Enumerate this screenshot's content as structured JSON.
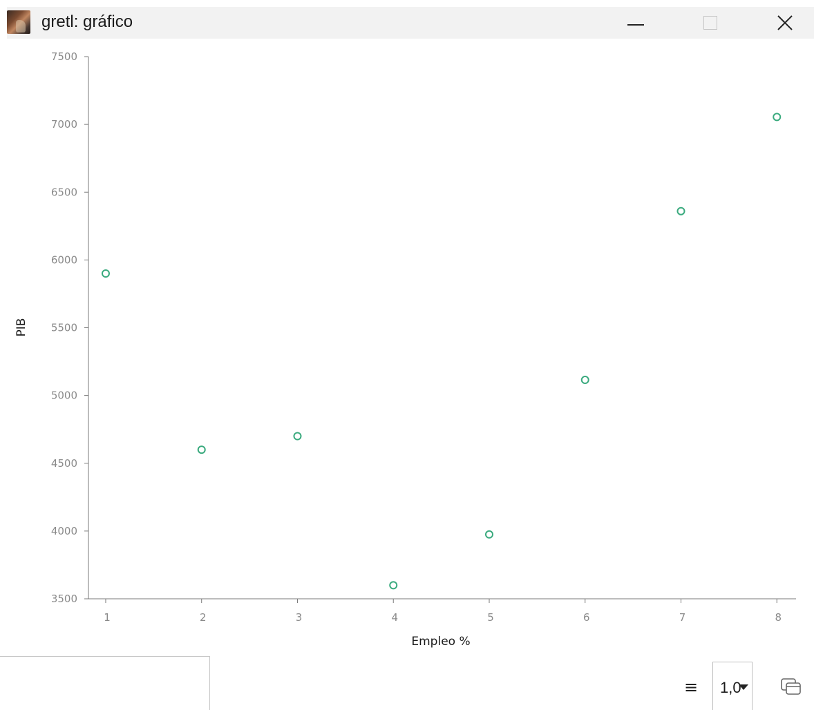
{
  "window": {
    "title": "gretl: gráfico",
    "icon": "gretl-app-icon",
    "controls": [
      "minimize-icon",
      "maximize-icon",
      "close-icon"
    ]
  },
  "chart_data": {
    "type": "scatter",
    "xlabel": "Empleo %",
    "ylabel": "PIB",
    "xlim": [
      0.82,
      8.2
    ],
    "ylim": [
      3500,
      7500
    ],
    "xticks": [
      1,
      2,
      3,
      4,
      5,
      6,
      7,
      8
    ],
    "yticks": [
      3500,
      4000,
      4500,
      5000,
      5500,
      6000,
      6500,
      7000,
      7500
    ],
    "series": [
      {
        "marker": "open-circle",
        "color": "#3aaa7e",
        "points": [
          {
            "x": 1,
            "y": 5900
          },
          {
            "x": 2,
            "y": 4600
          },
          {
            "x": 3,
            "y": 4700
          },
          {
            "x": 4,
            "y": 3600
          },
          {
            "x": 5,
            "y": 3975
          },
          {
            "x": 6,
            "y": 5115
          },
          {
            "x": 7,
            "y": 6360
          },
          {
            "x": 8,
            "y": 7055
          }
        ]
      }
    ],
    "grid": false,
    "legend": "none"
  },
  "toolbar": {
    "menu_icon": "hamburger-menu-icon",
    "zoom_value": "1,0",
    "dropdown_icon": "chevron-down-icon",
    "windows_icon": "windows-stack-icon"
  },
  "colors": {
    "marker": "#3aaa7e",
    "axis": "#7a7a7a",
    "tick_text": "#8a8a8a",
    "titlebar_bg": "#f2f2f2"
  }
}
